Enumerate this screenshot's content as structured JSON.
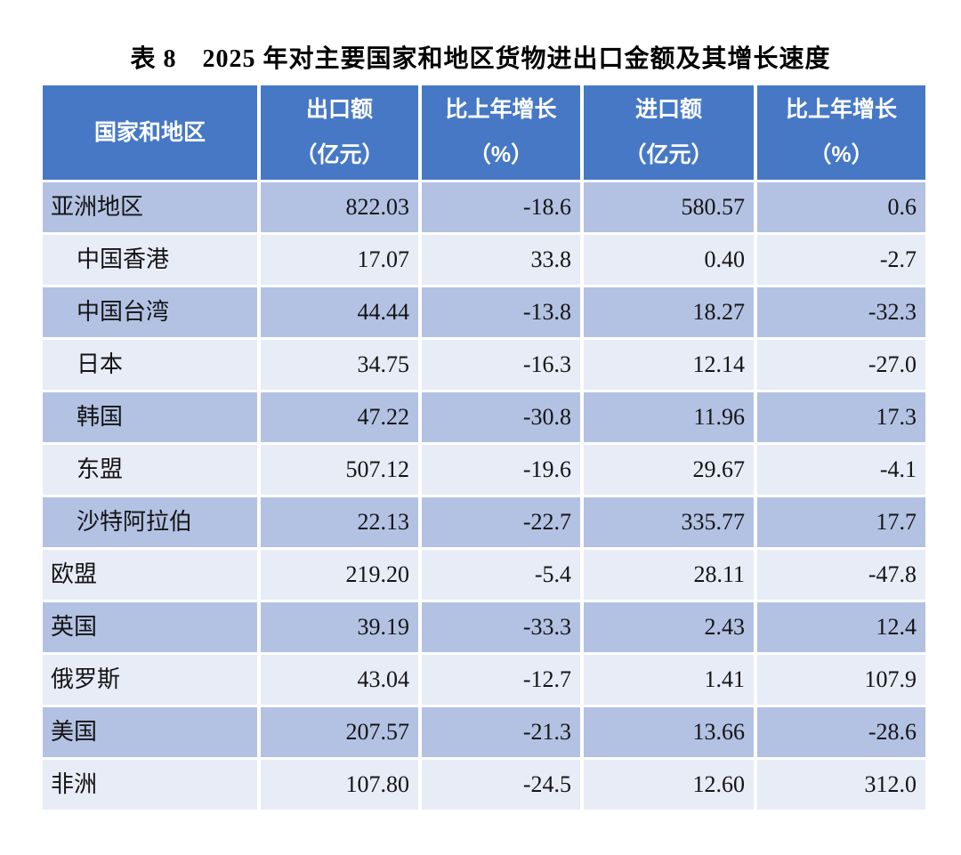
{
  "title": "表 8　2025 年对主要国家和地区货物进出口金额及其增长速度",
  "colors": {
    "header_bg": "#4678C6",
    "row_dark": "#B3C2E3",
    "row_light": "#E8ECF7",
    "header_text": "#FFFFFF",
    "body_text": "#141414"
  },
  "table": {
    "columns": [
      {
        "line1": "国家和地区",
        "line2": ""
      },
      {
        "line1": "出口额",
        "line2": "（亿元）"
      },
      {
        "line1": "比上年增长",
        "line2": "（%）"
      },
      {
        "line1": "进口额",
        "line2": "（亿元）"
      },
      {
        "line1": "比上年增长",
        "line2": "（%）"
      }
    ],
    "rows": [
      {
        "region": "亚洲地区",
        "indent": false,
        "export": "822.03",
        "export_growth": "-18.6",
        "import": "580.57",
        "import_growth": "0.6"
      },
      {
        "region": "中国香港",
        "indent": true,
        "export": "17.07",
        "export_growth": "33.8",
        "import": "0.40",
        "import_growth": "-2.7"
      },
      {
        "region": "中国台湾",
        "indent": true,
        "export": "44.44",
        "export_growth": "-13.8",
        "import": "18.27",
        "import_growth": "-32.3"
      },
      {
        "region": "日本",
        "indent": true,
        "export": "34.75",
        "export_growth": "-16.3",
        "import": "12.14",
        "import_growth": "-27.0"
      },
      {
        "region": "韩国",
        "indent": true,
        "export": "47.22",
        "export_growth": "-30.8",
        "import": "11.96",
        "import_growth": "17.3"
      },
      {
        "region": "东盟",
        "indent": true,
        "export": "507.12",
        "export_growth": "-19.6",
        "import": "29.67",
        "import_growth": "-4.1"
      },
      {
        "region": "沙特阿拉伯",
        "indent": true,
        "export": "22.13",
        "export_growth": "-22.7",
        "import": "335.77",
        "import_growth": "17.7"
      },
      {
        "region": "欧盟",
        "indent": false,
        "export": "219.20",
        "export_growth": "-5.4",
        "import": "28.11",
        "import_growth": "-47.8"
      },
      {
        "region": "英国",
        "indent": false,
        "export": "39.19",
        "export_growth": "-33.3",
        "import": "2.43",
        "import_growth": "12.4"
      },
      {
        "region": "俄罗斯",
        "indent": false,
        "export": "43.04",
        "export_growth": "-12.7",
        "import": "1.41",
        "import_growth": "107.9"
      },
      {
        "region": "美国",
        "indent": false,
        "export": "207.57",
        "export_growth": "-21.3",
        "import": "13.66",
        "import_growth": "-28.6"
      },
      {
        "region": "非洲",
        "indent": false,
        "export": "107.80",
        "export_growth": "-24.5",
        "import": "12.60",
        "import_growth": "312.0"
      }
    ]
  }
}
